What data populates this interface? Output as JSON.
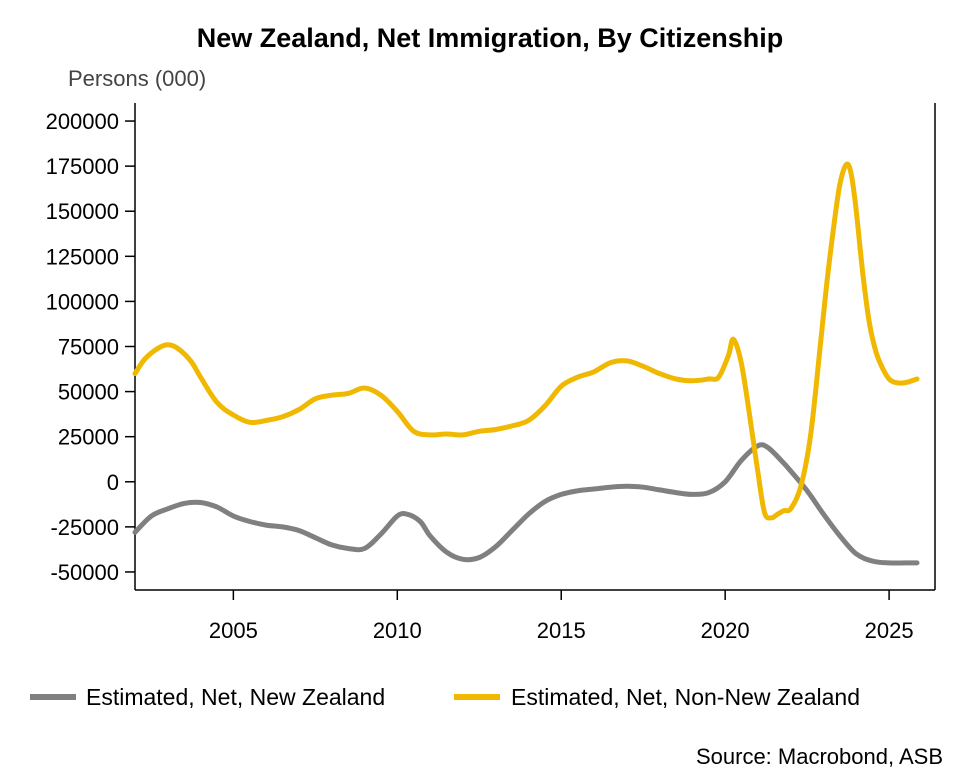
{
  "chart_data": {
    "type": "line",
    "title": "New Zealand, Net Immigration, By Citizenship",
    "ylabel": "Persons (000)",
    "xlabel": "",
    "xlim": [
      2002.0,
      2026.4
    ],
    "ylim": [
      -60000,
      210000
    ],
    "yticks": [
      200000,
      175000,
      150000,
      125000,
      100000,
      75000,
      50000,
      25000,
      0,
      -25000,
      -50000
    ],
    "ytick_labels": [
      "200000",
      "175000",
      "150000",
      "125000",
      "100000",
      "75000",
      "50000",
      "25000",
      "0",
      "-25000",
      "-50000"
    ],
    "xticks": [
      2005,
      2010,
      2015,
      2020,
      2025
    ],
    "xtick_labels": [
      "2005",
      "2010",
      "2015",
      "2020",
      "2025"
    ],
    "grid": false,
    "legend_position": "bottom",
    "colors": {
      "series_nz": "#808080",
      "series_non_nz": "#f0b800",
      "axis": "#000000"
    },
    "series": [
      {
        "name": "Estimated, Net, New Zealand",
        "x": [
          2002.0,
          2002.5,
          2003.0,
          2003.5,
          2004.0,
          2004.5,
          2005.0,
          2005.5,
          2006.0,
          2006.5,
          2007.0,
          2007.5,
          2008.0,
          2008.5,
          2009.0,
          2009.5,
          2010.0,
          2010.3,
          2010.7,
          2011.0,
          2011.5,
          2012.0,
          2012.5,
          2013.0,
          2013.5,
          2014.0,
          2014.5,
          2015.0,
          2015.5,
          2016.0,
          2016.5,
          2017.0,
          2017.5,
          2018.0,
          2018.5,
          2019.0,
          2019.5,
          2020.0,
          2020.5,
          2021.0,
          2021.3,
          2021.7,
          2022.0,
          2022.5,
          2023.0,
          2023.5,
          2024.0,
          2024.5,
          2025.0,
          2025.5,
          2025.85
        ],
        "values": [
          -28000,
          -19000,
          -15000,
          -12000,
          -11500,
          -14000,
          -19000,
          -22000,
          -24000,
          -25000,
          -27000,
          -31000,
          -35000,
          -37000,
          -37000,
          -29000,
          -19000,
          -18000,
          -22000,
          -30000,
          -39000,
          -43000,
          -42000,
          -36000,
          -27000,
          -18000,
          -11000,
          -7000,
          -5000,
          -4000,
          -3000,
          -2500,
          -3000,
          -4500,
          -6000,
          -7000,
          -6000,
          0,
          12000,
          20000,
          19000,
          12000,
          6000,
          -5000,
          -18000,
          -30000,
          -40000,
          -44000,
          -45000,
          -45000,
          -45000
        ]
      },
      {
        "name": "Estimated, Net, Non-New Zealand",
        "x": [
          2002.0,
          2002.3,
          2002.7,
          2003.0,
          2003.3,
          2003.7,
          2004.0,
          2004.5,
          2005.0,
          2005.5,
          2006.0,
          2006.5,
          2007.0,
          2007.5,
          2008.0,
          2008.5,
          2009.0,
          2009.5,
          2010.0,
          2010.5,
          2011.0,
          2011.5,
          2012.0,
          2012.5,
          2013.0,
          2013.5,
          2014.0,
          2014.5,
          2015.0,
          2015.5,
          2016.0,
          2016.5,
          2017.0,
          2017.5,
          2018.0,
          2018.5,
          2019.0,
          2019.5,
          2019.8,
          2020.1,
          2020.25,
          2020.5,
          2020.8,
          2021.0,
          2021.2,
          2021.4,
          2021.6,
          2021.8,
          2022.0,
          2022.3,
          2022.6,
          2022.9,
          2023.1,
          2023.3,
          2023.5,
          2023.7,
          2023.85,
          2024.0,
          2024.2,
          2024.4,
          2024.6,
          2024.8,
          2025.0,
          2025.2,
          2025.5,
          2025.85
        ],
        "values": [
          60000,
          68000,
          74000,
          76000,
          74000,
          67000,
          58000,
          44000,
          37000,
          33000,
          34000,
          36000,
          40000,
          46000,
          48000,
          49000,
          52000,
          48000,
          39000,
          28000,
          26000,
          26500,
          26000,
          28000,
          29000,
          31000,
          34000,
          42000,
          53000,
          58000,
          61000,
          66000,
          67000,
          64000,
          60000,
          57000,
          56000,
          57000,
          58000,
          70000,
          79000,
          65000,
          30000,
          5000,
          -17000,
          -20000,
          -18000,
          -16000,
          -15000,
          -3000,
          25000,
          75000,
          110000,
          140000,
          165000,
          176000,
          170000,
          150000,
          115000,
          88000,
          72000,
          63000,
          57000,
          55000,
          55000,
          57000
        ]
      }
    ]
  },
  "legend": [
    {
      "label": "Estimated, Net, New Zealand"
    },
    {
      "label": "Estimated, Net, Non-New Zealand"
    }
  ],
  "source": "Source: Macrobond, ASB"
}
